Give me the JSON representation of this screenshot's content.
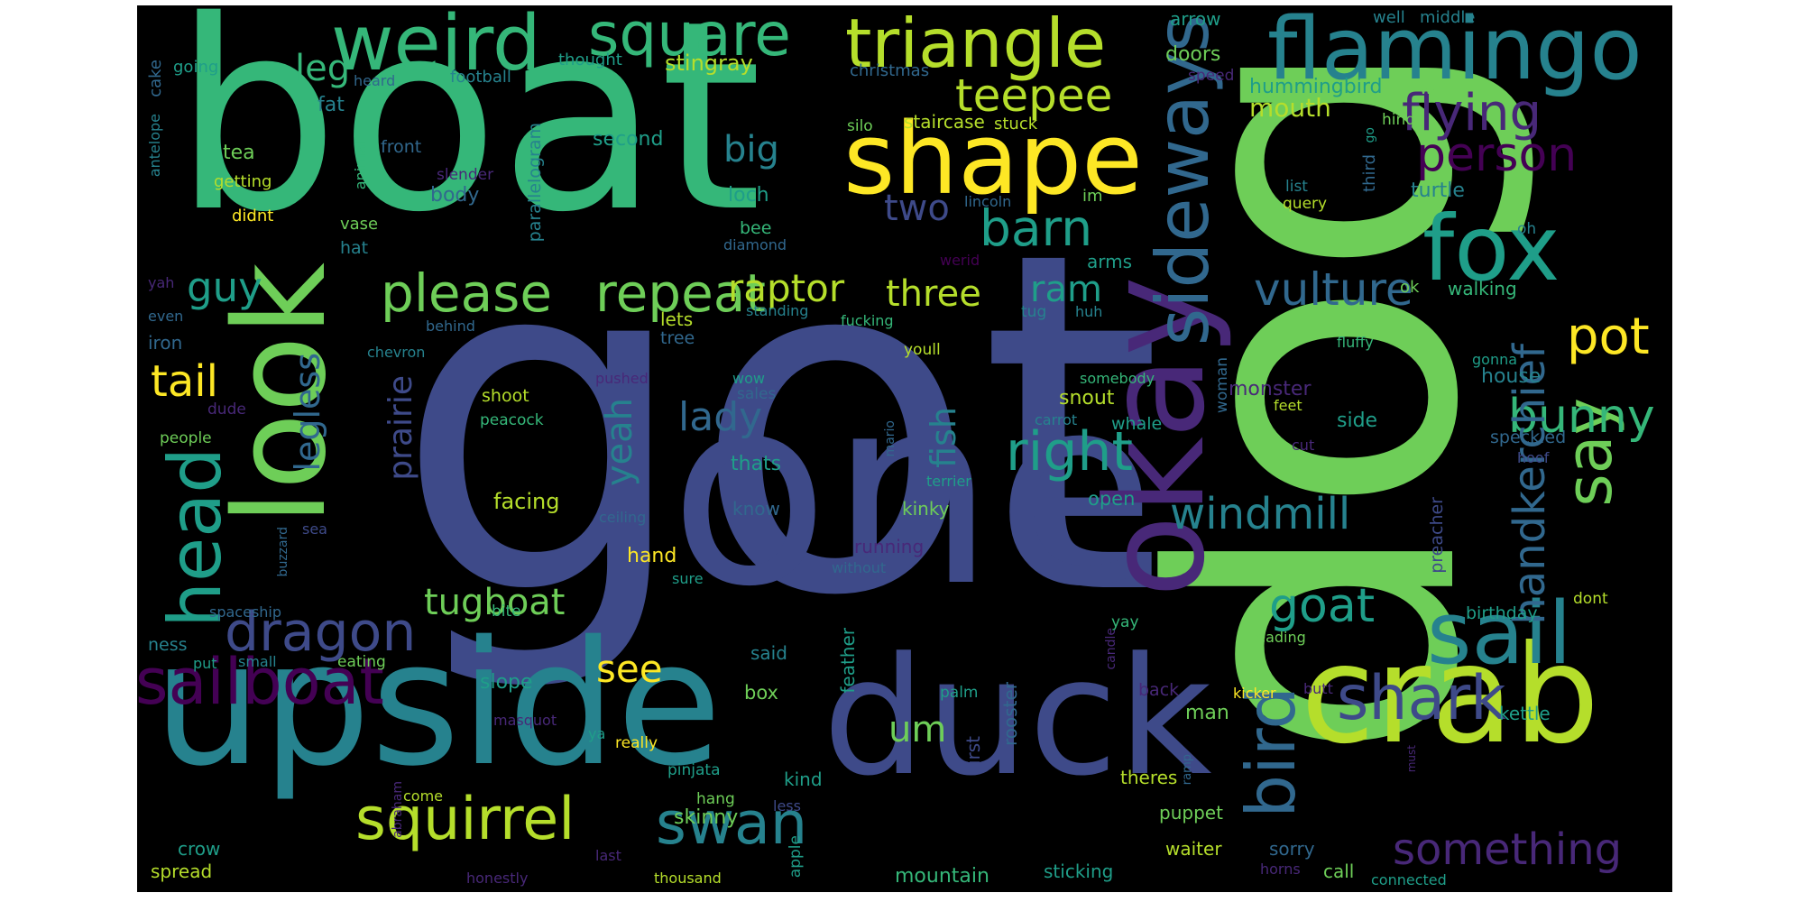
{
  "palette": {
    "c0": "#440154",
    "c1": "#482878",
    "c2": "#3e4a89",
    "c3": "#31688e",
    "c4": "#26828e",
    "c5": "#1f9e89",
    "c6": "#35b779",
    "c7": "#6ece58",
    "c8": "#b5de2b",
    "c9": "#fde725",
    "background": "#000000"
  },
  "words": [
    {
      "text": "got",
      "c": "c2"
    },
    {
      "text": "boat",
      "c": "c6"
    },
    {
      "text": "dog",
      "c": "c7"
    },
    {
      "text": "one",
      "c": "c2"
    },
    {
      "text": "upside",
      "c": "c4"
    },
    {
      "text": "duck",
      "c": "c2"
    },
    {
      "text": "crab",
      "c": "c8"
    },
    {
      "text": "look",
      "c": "c7"
    },
    {
      "text": "flamingo",
      "c": "c4"
    },
    {
      "text": "okay",
      "c": "c1"
    },
    {
      "text": "shape",
      "c": "c9"
    },
    {
      "text": "sideways",
      "c": "c3"
    },
    {
      "text": "weird",
      "c": "c6"
    },
    {
      "text": "square",
      "c": "c6"
    },
    {
      "text": "triangle",
      "c": "c8"
    },
    {
      "text": "fox",
      "c": "c5"
    },
    {
      "text": "sail",
      "c": "c4"
    },
    {
      "text": "sailboat",
      "c": "c0"
    },
    {
      "text": "head",
      "c": "c5"
    },
    {
      "text": "say",
      "c": "c7"
    },
    {
      "text": "bird",
      "c": "c3"
    },
    {
      "text": "shark",
      "c": "c2"
    },
    {
      "text": "squirrel",
      "c": "c8"
    },
    {
      "text": "swan",
      "c": "c4"
    },
    {
      "text": "right",
      "c": "c5"
    },
    {
      "text": "please",
      "c": "c7"
    },
    {
      "text": "repeat",
      "c": "c7"
    },
    {
      "text": "dragon",
      "c": "c2"
    },
    {
      "text": "flying",
      "c": "c1"
    },
    {
      "text": "person",
      "c": "c0"
    },
    {
      "text": "barn",
      "c": "c5"
    },
    {
      "text": "teepee",
      "c": "c8"
    },
    {
      "text": "pot",
      "c": "c9"
    },
    {
      "text": "bunny",
      "c": "c6"
    },
    {
      "text": "vulture",
      "c": "c3"
    },
    {
      "text": "windmill",
      "c": "c4"
    },
    {
      "text": "handkerchief",
      "c": "c3"
    },
    {
      "text": "goat",
      "c": "c5"
    },
    {
      "text": "something",
      "c": "c1"
    },
    {
      "text": "tail",
      "c": "c9"
    },
    {
      "text": "guy",
      "c": "c5"
    },
    {
      "text": "raptor",
      "c": "c8"
    },
    {
      "text": "legless",
      "c": "c3"
    },
    {
      "text": "lady",
      "c": "c3"
    },
    {
      "text": "two",
      "c": "c2"
    },
    {
      "text": "three",
      "c": "c8"
    },
    {
      "text": "ram",
      "c": "c5"
    },
    {
      "text": "big",
      "c": "c4"
    },
    {
      "text": "yeah",
      "c": "c4"
    },
    {
      "text": "prairie",
      "c": "c2"
    },
    {
      "text": "fish",
      "c": "c4"
    },
    {
      "text": "tugboat",
      "c": "c7"
    },
    {
      "text": "see",
      "c": "c9"
    },
    {
      "text": "um",
      "c": "c7"
    },
    {
      "text": "leg",
      "c": "c6"
    },
    {
      "text": "mouth",
      "c": "c8"
    },
    {
      "text": "hummingbird",
      "c": "c5"
    },
    {
      "text": "stingray",
      "c": "c8"
    },
    {
      "text": "doors",
      "c": "c7"
    },
    {
      "text": "arrow",
      "c": "c5"
    },
    {
      "text": "well",
      "c": "c4"
    },
    {
      "text": "middle",
      "c": "c4"
    },
    {
      "text": "cake",
      "c": "c3"
    },
    {
      "text": "going",
      "c": "c5"
    },
    {
      "text": "thought",
      "c": "c5"
    },
    {
      "text": "heard",
      "c": "c3"
    },
    {
      "text": "fat",
      "c": "c4"
    },
    {
      "text": "football",
      "c": "c4"
    },
    {
      "text": "christmas",
      "c": "c3"
    },
    {
      "text": "speed",
      "c": "c1"
    },
    {
      "text": "wait",
      "c": "c7"
    },
    {
      "text": "silo",
      "c": "c7"
    },
    {
      "text": "staircase",
      "c": "c8"
    },
    {
      "text": "stuck",
      "c": "c8"
    },
    {
      "text": "hind",
      "c": "c7"
    },
    {
      "text": "go",
      "c": "c5"
    },
    {
      "text": "tea",
      "c": "c7"
    },
    {
      "text": "front",
      "c": "c3"
    },
    {
      "text": "animal",
      "c": "c6"
    },
    {
      "text": "second",
      "c": "c5"
    },
    {
      "text": "slender",
      "c": "c1"
    },
    {
      "text": "getting",
      "c": "c8"
    },
    {
      "text": "body",
      "c": "c3"
    },
    {
      "text": "loch",
      "c": "c5"
    },
    {
      "text": "lincoln",
      "c": "c3"
    },
    {
      "text": "im",
      "c": "c7"
    },
    {
      "text": "list",
      "c": "c4"
    },
    {
      "text": "query",
      "c": "c8"
    },
    {
      "text": "third",
      "c": "c3"
    },
    {
      "text": "turtle",
      "c": "c4"
    },
    {
      "text": "oh",
      "c": "c4"
    },
    {
      "text": "didnt",
      "c": "c9"
    },
    {
      "text": "vase",
      "c": "c7"
    },
    {
      "text": "bee",
      "c": "c6"
    },
    {
      "text": "diamond",
      "c": "c3"
    },
    {
      "text": "antelope",
      "c": "c4"
    },
    {
      "text": "hat",
      "c": "c4"
    },
    {
      "text": "parallelogram",
      "c": "c4"
    },
    {
      "text": "werid",
      "c": "c0"
    },
    {
      "text": "arms",
      "c": "c5"
    },
    {
      "text": "yah",
      "c": "c1"
    },
    {
      "text": "standing",
      "c": "c4"
    },
    {
      "text": "tug",
      "c": "c4"
    },
    {
      "text": "huh",
      "c": "c4"
    },
    {
      "text": "ok",
      "c": "c7"
    },
    {
      "text": "walking",
      "c": "c6"
    },
    {
      "text": "even",
      "c": "c3"
    },
    {
      "text": "lets",
      "c": "c8"
    },
    {
      "text": "fucking",
      "c": "c6"
    },
    {
      "text": "behind",
      "c": "c3"
    },
    {
      "text": "tree",
      "c": "c3"
    },
    {
      "text": "youll",
      "c": "c8"
    },
    {
      "text": "fluffy",
      "c": "c6"
    },
    {
      "text": "iron",
      "c": "c3"
    },
    {
      "text": "chevron",
      "c": "c4"
    },
    {
      "text": "gonna",
      "c": "c5"
    },
    {
      "text": "pushed",
      "c": "c1"
    },
    {
      "text": "wow",
      "c": "c5"
    },
    {
      "text": "somebody",
      "c": "c6"
    },
    {
      "text": "woman",
      "c": "c3"
    },
    {
      "text": "house",
      "c": "c4"
    },
    {
      "text": "shoot",
      "c": "c8"
    },
    {
      "text": "sales",
      "c": "c3"
    },
    {
      "text": "snout",
      "c": "c8"
    },
    {
      "text": "monster",
      "c": "c1"
    },
    {
      "text": "dude",
      "c": "c1"
    },
    {
      "text": "peacock",
      "c": "c6"
    },
    {
      "text": "carrot",
      "c": "c4"
    },
    {
      "text": "whale",
      "c": "c5"
    },
    {
      "text": "feet",
      "c": "c8"
    },
    {
      "text": "side",
      "c": "c5"
    },
    {
      "text": "people",
      "c": "c7"
    },
    {
      "text": "mario",
      "c": "c3"
    },
    {
      "text": "cut",
      "c": "c1"
    },
    {
      "text": "speckled",
      "c": "c3"
    },
    {
      "text": "thats",
      "c": "c5"
    },
    {
      "text": "hoof",
      "c": "c2"
    },
    {
      "text": "terrier",
      "c": "c5"
    },
    {
      "text": "facing",
      "c": "c8"
    },
    {
      "text": "know",
      "c": "c3"
    },
    {
      "text": "kinky",
      "c": "c7"
    },
    {
      "text": "open",
      "c": "c5"
    },
    {
      "text": "preacher",
      "c": "c2"
    },
    {
      "text": "ceiling",
      "c": "c3"
    },
    {
      "text": "sea",
      "c": "c2"
    },
    {
      "text": "buzzard",
      "c": "c3"
    },
    {
      "text": "running",
      "c": "c1"
    },
    {
      "text": "hand",
      "c": "c9"
    },
    {
      "text": "without",
      "c": "c3"
    },
    {
      "text": "sure",
      "c": "c5"
    },
    {
      "text": "dont",
      "c": "c8"
    },
    {
      "text": "birthday",
      "c": "c5"
    },
    {
      "text": "bite",
      "c": "c6"
    },
    {
      "text": "spaceship",
      "c": "c3"
    },
    {
      "text": "candle",
      "c": "c1"
    },
    {
      "text": "yay",
      "c": "c6"
    },
    {
      "text": "reading",
      "c": "c7"
    },
    {
      "text": "ness",
      "c": "c4"
    },
    {
      "text": "said",
      "c": "c4"
    },
    {
      "text": "put",
      "c": "c5"
    },
    {
      "text": "small",
      "c": "c4"
    },
    {
      "text": "eating",
      "c": "c7"
    },
    {
      "text": "slope",
      "c": "c5"
    },
    {
      "text": "feather",
      "c": "c5"
    },
    {
      "text": "palm",
      "c": "c5"
    },
    {
      "text": "back",
      "c": "c1"
    },
    {
      "text": "kicker",
      "c": "c9"
    },
    {
      "text": "butt",
      "c": "c1"
    },
    {
      "text": "man",
      "c": "c7"
    },
    {
      "text": "kettle",
      "c": "c5"
    },
    {
      "text": "box",
      "c": "c7"
    },
    {
      "text": "masquot",
      "c": "c1"
    },
    {
      "text": "ya",
      "c": "c5"
    },
    {
      "text": "really",
      "c": "c9"
    },
    {
      "text": "rooster",
      "c": "c3"
    },
    {
      "text": "first",
      "c": "c2"
    },
    {
      "text": "ramp",
      "c": "c3"
    },
    {
      "text": "must",
      "c": "c1"
    },
    {
      "text": "pinjata",
      "c": "c5"
    },
    {
      "text": "hang",
      "c": "c7"
    },
    {
      "text": "kind",
      "c": "c5"
    },
    {
      "text": "less",
      "c": "c2"
    },
    {
      "text": "skinny",
      "c": "c7"
    },
    {
      "text": "abraham",
      "c": "c1"
    },
    {
      "text": "come",
      "c": "c8"
    },
    {
      "text": "theres",
      "c": "c8"
    },
    {
      "text": "puppet",
      "c": "c7"
    },
    {
      "text": "crow",
      "c": "c5"
    },
    {
      "text": "apple",
      "c": "c5"
    },
    {
      "text": "last",
      "c": "c1"
    },
    {
      "text": "waiter",
      "c": "c8"
    },
    {
      "text": "sorry",
      "c": "c3"
    },
    {
      "text": "spread",
      "c": "c8"
    },
    {
      "text": "honestly",
      "c": "c1"
    },
    {
      "text": "thousand",
      "c": "c8"
    },
    {
      "text": "mountain",
      "c": "c6"
    },
    {
      "text": "sticking",
      "c": "c5"
    },
    {
      "text": "call",
      "c": "c7"
    },
    {
      "text": "horns",
      "c": "c1"
    },
    {
      "text": "connected",
      "c": "c5"
    }
  ]
}
